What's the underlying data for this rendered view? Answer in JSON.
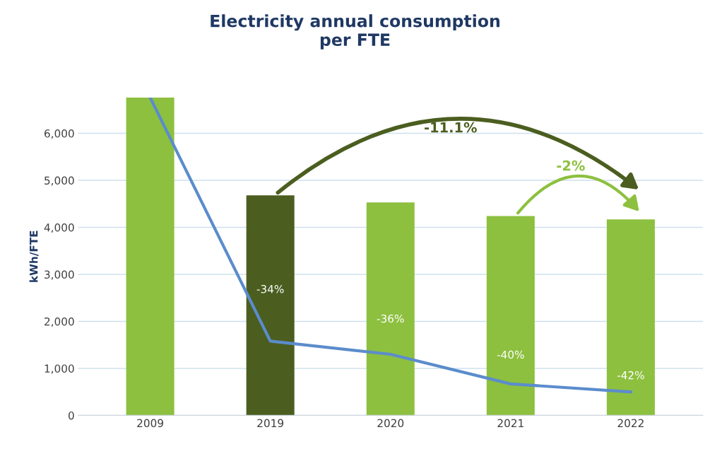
{
  "chart_data": {
    "type": "bar",
    "title": "Electricity annual consumption\nper FTE",
    "ylabel": "kWh/FTE",
    "categories": [
      "2009",
      "2019",
      "2020",
      "2021",
      "2022"
    ],
    "series": [
      {
        "colors": [
          "#8dc03f",
          "#4b5e20",
          "#8dc03f",
          "#8dc03f",
          "#8dc03f"
        ],
        "values": [
          6760,
          4680,
          4530,
          4240,
          4170
        ]
      },
      {
        "type": "line",
        "color": "#5b8ccc",
        "values": [
          6760,
          1580,
          1300,
          670,
          500
        ]
      }
    ],
    "ylim": [
      0,
      6760
    ],
    "yticks": [
      {
        "value": 0,
        "label": "0"
      },
      {
        "value": 1000,
        "label": "1,000"
      },
      {
        "value": 2000,
        "label": "2,000"
      },
      {
        "value": 3000,
        "label": "3,000"
      },
      {
        "value": 4000,
        "label": "4,000"
      },
      {
        "value": 5000,
        "label": "5,000"
      },
      {
        "value": 6000,
        "label": "6,000"
      }
    ],
    "grid": "y",
    "legend": false,
    "annotations": [
      "-11.1%",
      "-2%",
      "-34%",
      "-36%",
      "-40%",
      "-42%"
    ]
  }
}
